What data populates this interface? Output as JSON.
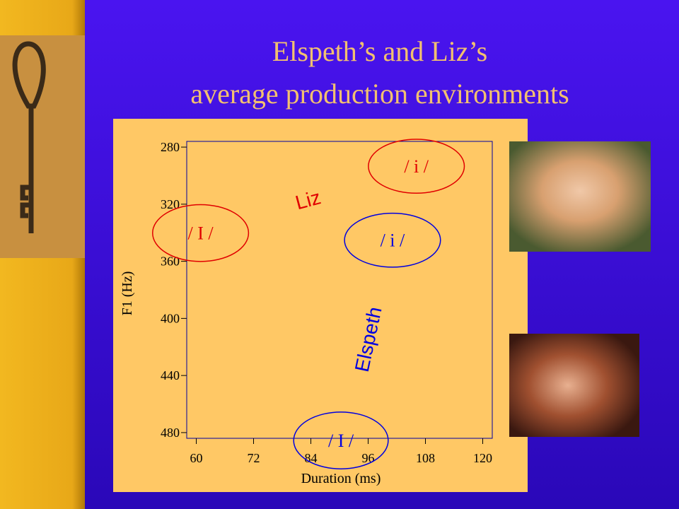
{
  "chart_data": {
    "type": "ellipse",
    "title": [
      "Elspeth’s and Liz’s",
      "average production environments"
    ],
    "x_label": "Duration (ms)",
    "y_label": "F1 (Hz)",
    "xlim": [
      58,
      122
    ],
    "xticks": [
      60,
      72,
      84,
      96,
      108,
      120
    ],
    "ylim": [
      484,
      276
    ],
    "yticks": [
      280,
      320,
      360,
      400,
      440,
      480
    ],
    "series": [
      {
        "name": "Liz",
        "color": "#e00000",
        "points": [
          {
            "label": "/ i /",
            "x": 106.1,
            "y": 293.4,
            "width": 20.1,
            "height": 37.8
          },
          {
            "label": "/ I /",
            "x": 60.9,
            "y": 340.2,
            "width": 20.1,
            "height": 39.8
          }
        ]
      },
      {
        "name": "Elspeth",
        "color": "#0000e0",
        "points": [
          {
            "label": "/ i /",
            "x": 101.1,
            "y": 345.2,
            "width": 20.1,
            "height": 37.8
          },
          {
            "label": "/ I /",
            "x": 90.3,
            "y": 485.5,
            "width": 19.8,
            "height": 39.8
          }
        ]
      }
    ]
  }
}
